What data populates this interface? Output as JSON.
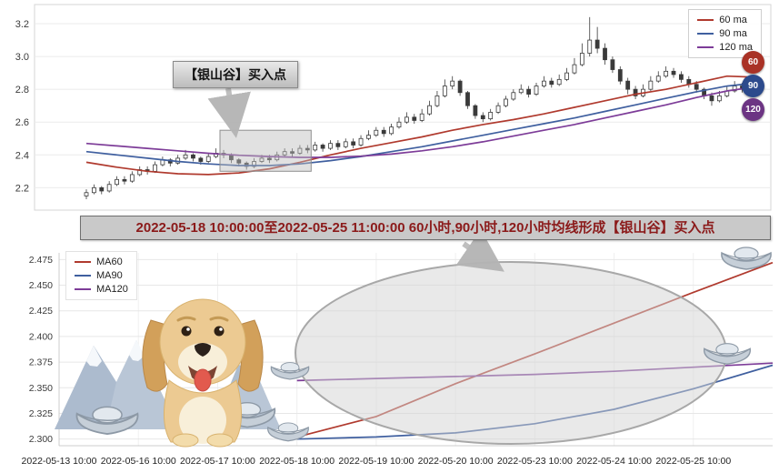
{
  "banner": {
    "text": "2022-05-18 10:00:00至2022-05-25 11:00:00 60小时,90小时,120小时均线形成【银山谷】买入点"
  },
  "colors": {
    "ma60": "#b03a2e",
    "ma90": "#3f5f9f",
    "ma120": "#7d3c98",
    "candle": "#3a3a3a",
    "banner_text": "#8b1a1a",
    "highlight_gray": "#bdbdbd"
  },
  "decorations": [
    {
      "name": "golden-retriever-dog"
    },
    {
      "name": "snow-mountains"
    },
    {
      "name": "silver-ingots"
    }
  ],
  "chart_data": [
    {
      "id": "hourly-price-with-moving-averages",
      "type": "candlestick",
      "ylim": [
        2.08,
        3.3
      ],
      "ytick_labels": [
        "2.2",
        "2.4",
        "2.6",
        "2.8",
        "3.0",
        "3.2"
      ],
      "legend": [
        {
          "label": "60 ma",
          "color": "#b03a2e"
        },
        {
          "label": "90 ma",
          "color": "#3f5f9f"
        },
        {
          "label": "120 ma",
          "color": "#7d3c98"
        }
      ],
      "badges": [
        {
          "label": "60",
          "color": "#a93226"
        },
        {
          "label": "90",
          "color": "#2c4a8c"
        },
        {
          "label": "120",
          "color": "#6c3483"
        }
      ],
      "annotation": {
        "text": "【银山谷】买入点"
      },
      "highlight_box": {
        "candle_range": [
          18,
          29
        ],
        "value_range": [
          2.3,
          2.55
        ]
      },
      "candles": [
        [
          2.15,
          2.19,
          2.13,
          2.17
        ],
        [
          2.17,
          2.22,
          2.16,
          2.2
        ],
        [
          2.2,
          2.21,
          2.16,
          2.18
        ],
        [
          2.18,
          2.24,
          2.17,
          2.22
        ],
        [
          2.22,
          2.27,
          2.21,
          2.25
        ],
        [
          2.25,
          2.27,
          2.22,
          2.24
        ],
        [
          2.24,
          2.3,
          2.23,
          2.28
        ],
        [
          2.28,
          2.33,
          2.27,
          2.31
        ],
        [
          2.31,
          2.33,
          2.28,
          2.3
        ],
        [
          2.3,
          2.36,
          2.29,
          2.34
        ],
        [
          2.34,
          2.39,
          2.33,
          2.37
        ],
        [
          2.37,
          2.38,
          2.33,
          2.35
        ],
        [
          2.35,
          2.4,
          2.34,
          2.38
        ],
        [
          2.38,
          2.43,
          2.37,
          2.4
        ],
        [
          2.4,
          2.41,
          2.36,
          2.38
        ],
        [
          2.38,
          2.39,
          2.34,
          2.36
        ],
        [
          2.36,
          2.41,
          2.35,
          2.39
        ],
        [
          2.39,
          2.44,
          2.38,
          2.41
        ],
        [
          2.41,
          2.43,
          2.38,
          2.4
        ],
        [
          2.4,
          2.41,
          2.35,
          2.37
        ],
        [
          2.37,
          2.38,
          2.33,
          2.35
        ],
        [
          2.35,
          2.36,
          2.31,
          2.33
        ],
        [
          2.33,
          2.38,
          2.32,
          2.36
        ],
        [
          2.36,
          2.4,
          2.35,
          2.38
        ],
        [
          2.38,
          2.4,
          2.35,
          2.37
        ],
        [
          2.37,
          2.42,
          2.36,
          2.4
        ],
        [
          2.4,
          2.44,
          2.39,
          2.42
        ],
        [
          2.42,
          2.44,
          2.39,
          2.41
        ],
        [
          2.41,
          2.46,
          2.4,
          2.44
        ],
        [
          2.44,
          2.46,
          2.41,
          2.43
        ],
        [
          2.43,
          2.48,
          2.42,
          2.46
        ],
        [
          2.46,
          2.47,
          2.42,
          2.44
        ],
        [
          2.44,
          2.49,
          2.43,
          2.47
        ],
        [
          2.47,
          2.49,
          2.43,
          2.45
        ],
        [
          2.45,
          2.5,
          2.44,
          2.48
        ],
        [
          2.48,
          2.5,
          2.44,
          2.46
        ],
        [
          2.46,
          2.52,
          2.45,
          2.5
        ],
        [
          2.5,
          2.55,
          2.49,
          2.52
        ],
        [
          2.52,
          2.57,
          2.51,
          2.55
        ],
        [
          2.55,
          2.57,
          2.51,
          2.53
        ],
        [
          2.53,
          2.59,
          2.52,
          2.57
        ],
        [
          2.57,
          2.63,
          2.56,
          2.6
        ],
        [
          2.6,
          2.66,
          2.59,
          2.63
        ],
        [
          2.63,
          2.65,
          2.59,
          2.61
        ],
        [
          2.61,
          2.68,
          2.6,
          2.65
        ],
        [
          2.65,
          2.73,
          2.64,
          2.7
        ],
        [
          2.7,
          2.79,
          2.69,
          2.76
        ],
        [
          2.76,
          2.86,
          2.75,
          2.82
        ],
        [
          2.82,
          2.88,
          2.8,
          2.85
        ],
        [
          2.85,
          2.86,
          2.76,
          2.78
        ],
        [
          2.78,
          2.79,
          2.68,
          2.7
        ],
        [
          2.7,
          2.71,
          2.62,
          2.64
        ],
        [
          2.64,
          2.66,
          2.6,
          2.62
        ],
        [
          2.62,
          2.68,
          2.61,
          2.66
        ],
        [
          2.66,
          2.72,
          2.65,
          2.7
        ],
        [
          2.7,
          2.76,
          2.69,
          2.74
        ],
        [
          2.74,
          2.8,
          2.73,
          2.78
        ],
        [
          2.78,
          2.83,
          2.77,
          2.8
        ],
        [
          2.8,
          2.82,
          2.75,
          2.77
        ],
        [
          2.77,
          2.84,
          2.76,
          2.82
        ],
        [
          2.82,
          2.88,
          2.81,
          2.85
        ],
        [
          2.85,
          2.87,
          2.81,
          2.83
        ],
        [
          2.83,
          2.89,
          2.82,
          2.86
        ],
        [
          2.86,
          2.93,
          2.85,
          2.9
        ],
        [
          2.9,
          2.99,
          2.89,
          2.95
        ],
        [
          2.95,
          3.08,
          2.94,
          3.02
        ],
        [
          3.02,
          3.24,
          3.0,
          3.1
        ],
        [
          3.1,
          3.18,
          3.02,
          3.05
        ],
        [
          3.05,
          3.08,
          2.95,
          2.98
        ],
        [
          2.98,
          3.0,
          2.9,
          2.92
        ],
        [
          2.92,
          2.94,
          2.83,
          2.85
        ],
        [
          2.85,
          2.87,
          2.77,
          2.8
        ],
        [
          2.8,
          2.82,
          2.74,
          2.76
        ],
        [
          2.76,
          2.83,
          2.75,
          2.8
        ],
        [
          2.8,
          2.88,
          2.79,
          2.85
        ],
        [
          2.85,
          2.91,
          2.84,
          2.88
        ],
        [
          2.88,
          2.94,
          2.87,
          2.91
        ],
        [
          2.91,
          2.93,
          2.87,
          2.89
        ],
        [
          2.89,
          2.91,
          2.84,
          2.86
        ],
        [
          2.86,
          2.88,
          2.81,
          2.83
        ],
        [
          2.83,
          2.85,
          2.78,
          2.8
        ],
        [
          2.8,
          2.81,
          2.74,
          2.76
        ],
        [
          2.76,
          2.78,
          2.7,
          2.73
        ],
        [
          2.73,
          2.79,
          2.72,
          2.76
        ],
        [
          2.76,
          2.82,
          2.75,
          2.79
        ],
        [
          2.79,
          2.85,
          2.78,
          2.82
        ],
        [
          2.82,
          2.84,
          2.78,
          2.8
        ],
        [
          2.8,
          2.86,
          2.79,
          2.83
        ]
      ],
      "ma_index": [
        0,
        4,
        8,
        12,
        16,
        20,
        24,
        28,
        32,
        36,
        40,
        44,
        48,
        52,
        56,
        60,
        64,
        68,
        72,
        76,
        80,
        84,
        87
      ],
      "series": [
        {
          "name": "60 ma",
          "color": "#b03a2e",
          "values": [
            2.355,
            2.325,
            2.3,
            2.285,
            2.28,
            2.29,
            2.315,
            2.355,
            2.4,
            2.44,
            2.475,
            2.51,
            2.55,
            2.585,
            2.615,
            2.65,
            2.69,
            2.73,
            2.77,
            2.8,
            2.84,
            2.88,
            2.875
          ]
        },
        {
          "name": "90 ma",
          "color": "#3f5f9f",
          "values": [
            2.42,
            2.4,
            2.38,
            2.36,
            2.345,
            2.335,
            2.335,
            2.345,
            2.365,
            2.39,
            2.42,
            2.45,
            2.485,
            2.52,
            2.555,
            2.59,
            2.625,
            2.665,
            2.705,
            2.745,
            2.785,
            2.82,
            2.835
          ]
        },
        {
          "name": "120 ma",
          "color": "#7d3c98",
          "values": [
            2.47,
            2.455,
            2.44,
            2.425,
            2.41,
            2.398,
            2.39,
            2.385,
            2.385,
            2.392,
            2.405,
            2.425,
            2.45,
            2.48,
            2.515,
            2.55,
            2.585,
            2.625,
            2.665,
            2.705,
            2.75,
            2.79,
            2.81
          ]
        }
      ]
    },
    {
      "id": "silver-valley-ma-detail",
      "type": "line",
      "ylim": [
        2.2935,
        2.4815
      ],
      "ytick_labels": [
        "2.300",
        "2.325",
        "2.350",
        "2.375",
        "2.400",
        "2.425",
        "2.450",
        "2.475"
      ],
      "x_tick_labels": [
        "2022-05-13 10:00",
        "2022-05-16 10:00",
        "2022-05-17 10:00",
        "2022-05-18 10:00",
        "2022-05-19 10:00",
        "2022-05-20 10:00",
        "2022-05-23 10:00",
        "2022-05-24 10:00",
        "2022-05-25 10:00"
      ],
      "x_points": 10,
      "x_note": "series x_index refers to tick positions; index 9 is the right plot edge past the last tick",
      "legend": [
        {
          "label": "MA60",
          "color": "#b03a2e"
        },
        {
          "label": "MA90",
          "color": "#3f5f9f"
        },
        {
          "label": "MA120",
          "color": "#7d3c98"
        }
      ],
      "series": [
        {
          "name": "MA60",
          "color": "#b03a2e",
          "x_index": [
            3,
            4,
            5,
            6,
            7,
            8,
            9
          ],
          "values": [
            2.302,
            2.322,
            2.354,
            2.383,
            2.413,
            2.443,
            2.472
          ]
        },
        {
          "name": "MA90",
          "color": "#3f5f9f",
          "x_index": [
            3,
            4,
            5,
            6,
            7,
            8,
            9
          ],
          "values": [
            2.3,
            2.302,
            2.306,
            2.315,
            2.329,
            2.349,
            2.372
          ]
        },
        {
          "name": "MA120",
          "color": "#7d3c98",
          "x_index": [
            3,
            4,
            5,
            6,
            7,
            8,
            9
          ],
          "values": [
            2.357,
            2.359,
            2.361,
            2.363,
            2.366,
            2.37,
            2.374
          ]
        }
      ],
      "highlight": {
        "shape": "ellipse",
        "note": "silver-valley pattern highlight"
      }
    }
  ]
}
